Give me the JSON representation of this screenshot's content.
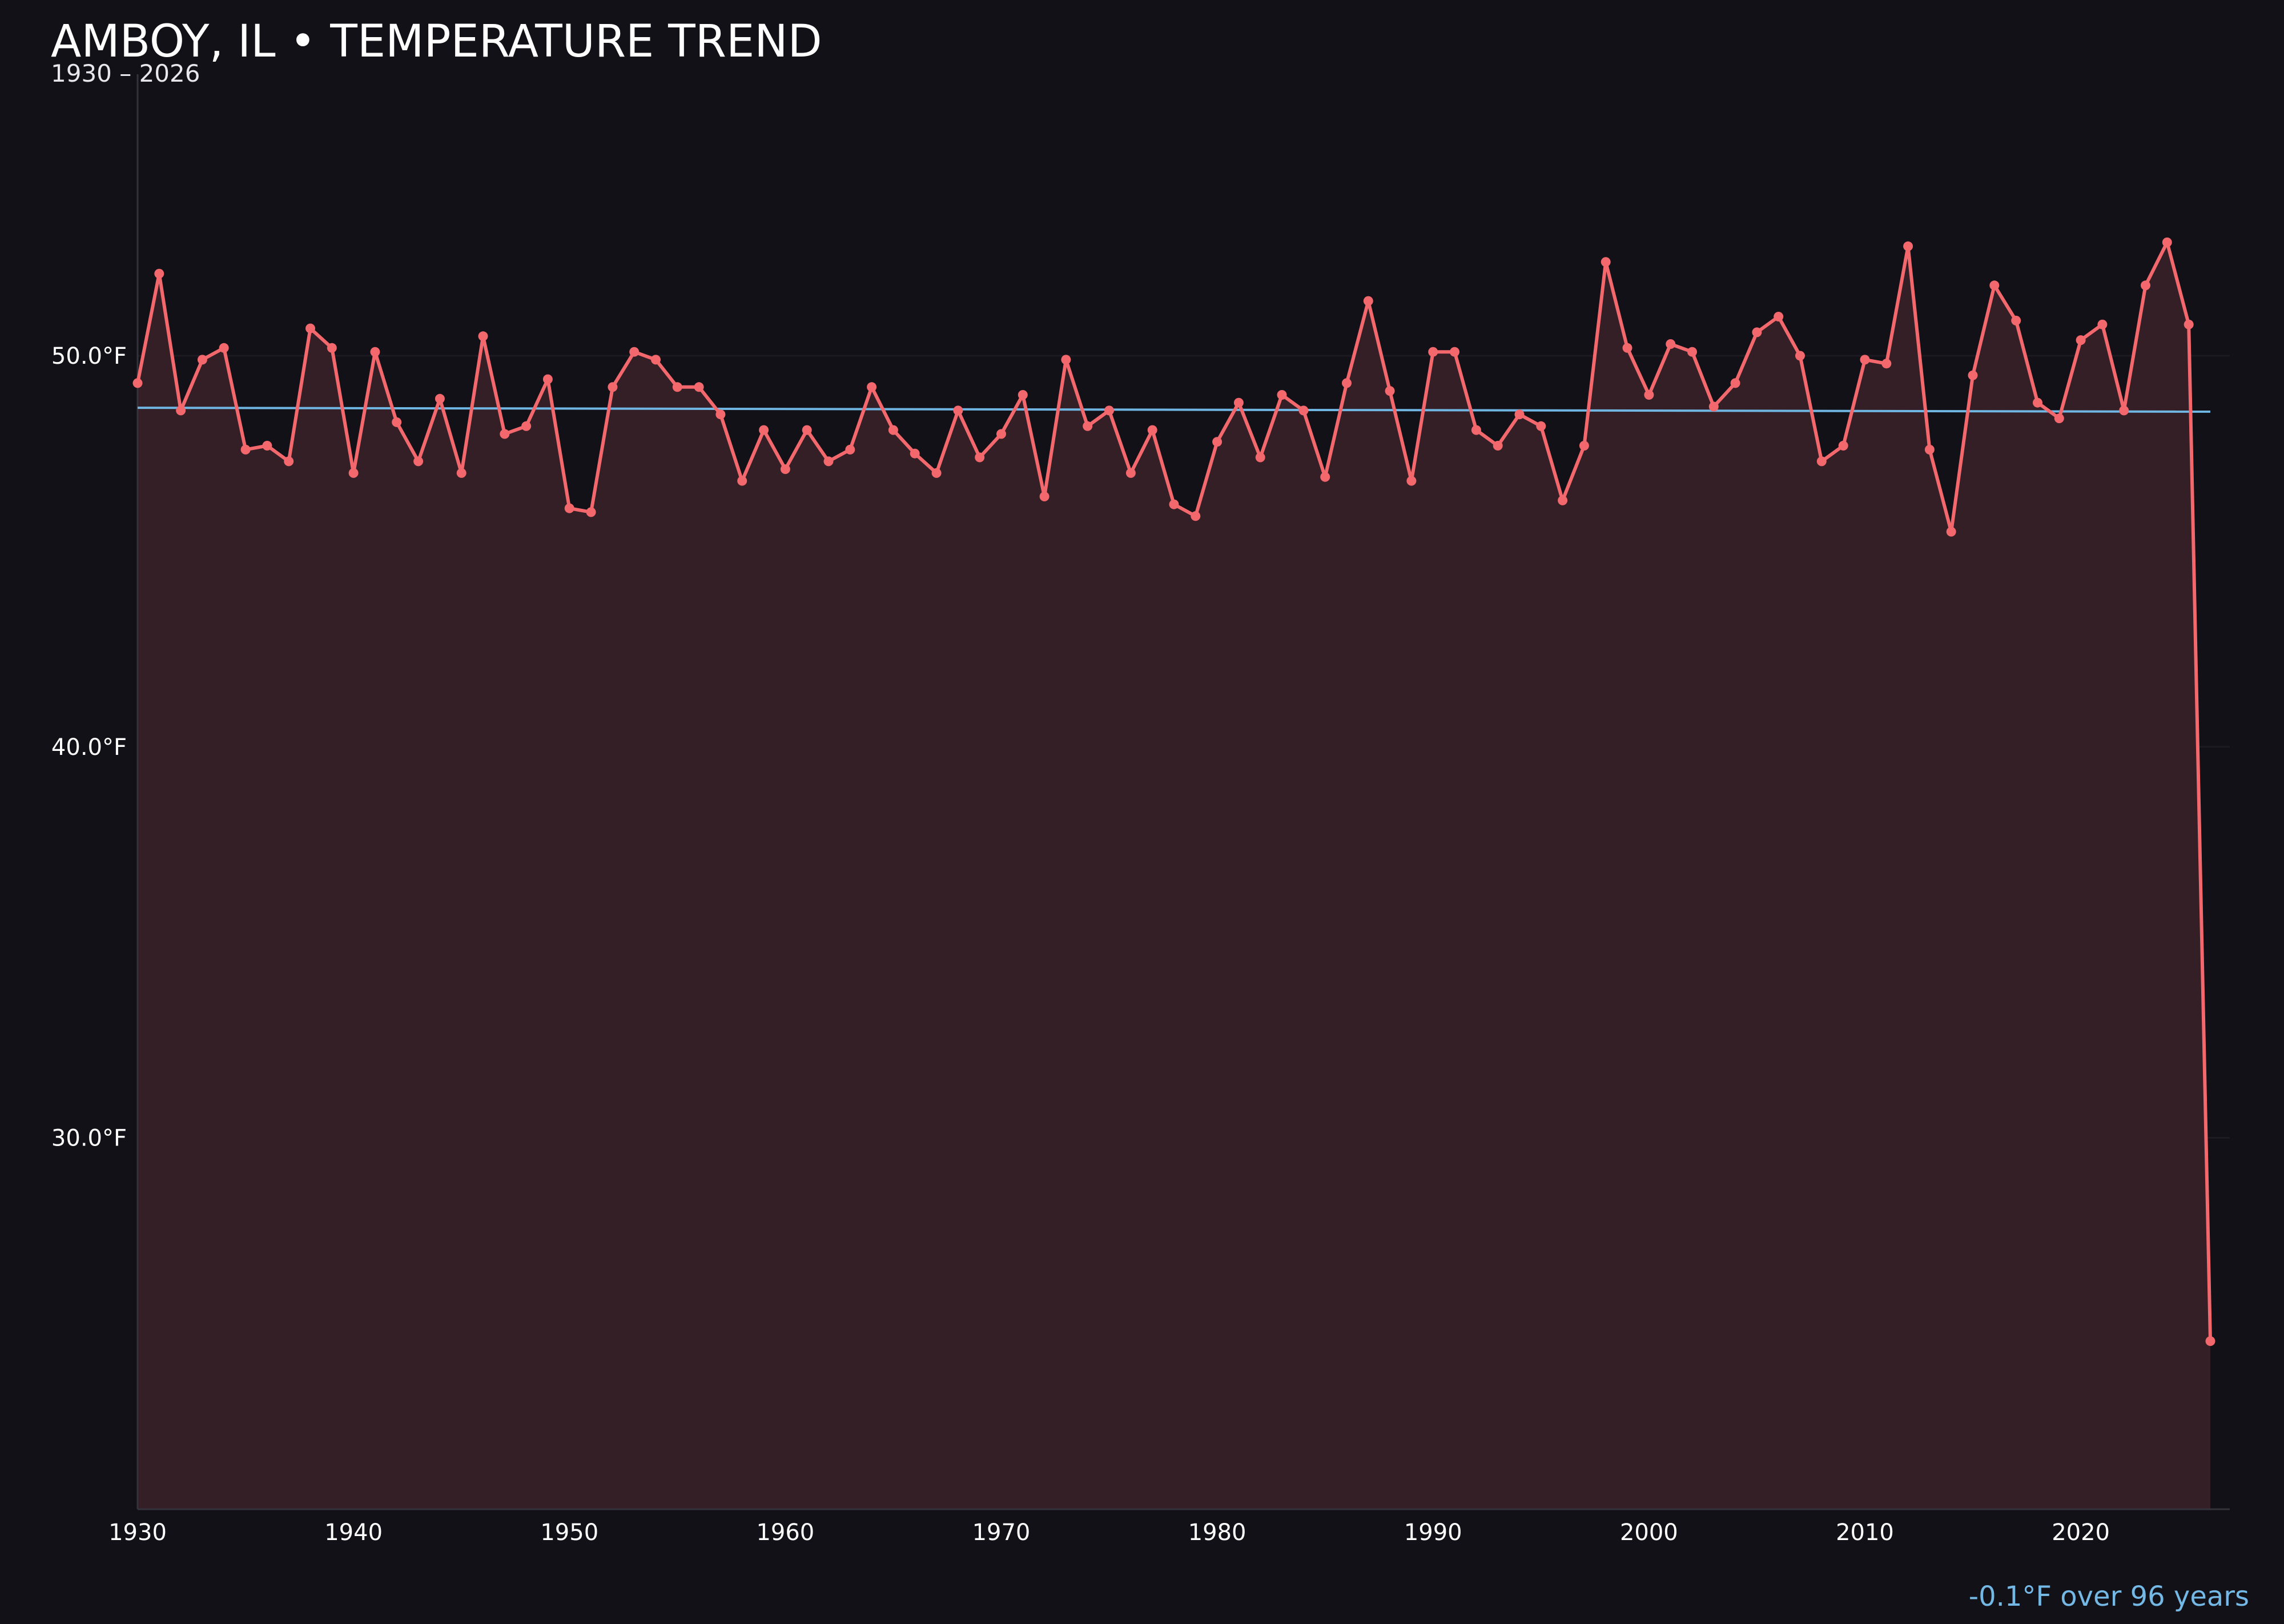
{
  "chart_data": {
    "type": "line",
    "title": "AMBOY, IL • TEMPERATURE TREND",
    "subtitle": "1930 – 2026",
    "xlabel": "",
    "ylabel": "",
    "xlim": [
      1930,
      2026.9
    ],
    "ylim": [
      20.5,
      57.2
    ],
    "x_ticks": [
      1930,
      1940,
      1950,
      1960,
      1970,
      1980,
      1990,
      2000,
      2010,
      2020
    ],
    "y_ticks": [
      30.0,
      40.0,
      50.0
    ],
    "y_tick_labels": [
      "30.0°F",
      "40.0°F",
      "50.0°F"
    ],
    "grid": "horizontal",
    "legend": "none",
    "colors": {
      "background": "#121117",
      "series": "#f2686d",
      "fill": "#351f26",
      "trend": "#6fb6e3",
      "axis": "#34333b",
      "grid": "#1d1b22",
      "note": "#74b9e6"
    },
    "series": [
      {
        "x": [
          1930,
          1931,
          1932,
          1933,
          1934,
          1935,
          1936,
          1937,
          1938,
          1939,
          1940,
          1941,
          1942,
          1943,
          1944,
          1945,
          1946,
          1947,
          1948,
          1949,
          1950,
          1951,
          1952,
          1953,
          1954,
          1955,
          1956,
          1957,
          1958,
          1959,
          1960,
          1961,
          1962,
          1963,
          1964,
          1965,
          1966,
          1967,
          1968,
          1969,
          1970,
          1971,
          1972,
          1973,
          1974,
          1975,
          1976,
          1977,
          1978,
          1979,
          1980,
          1981,
          1982,
          1983,
          1984,
          1985,
          1986,
          1987,
          1988,
          1989,
          1990,
          1991,
          1992,
          1993,
          1994,
          1995,
          1996,
          1997,
          1998,
          1999,
          2000,
          2001,
          2002,
          2003,
          2004,
          2005,
          2006,
          2007,
          2008,
          2009,
          2010,
          2011,
          2012,
          2013,
          2014,
          2015,
          2016,
          2017,
          2018,
          2019,
          2020,
          2021,
          2022,
          2023,
          2024,
          2025,
          2026
        ],
        "values": [
          49.3,
          52.1,
          48.6,
          49.9,
          50.2,
          47.6,
          47.7,
          47.3,
          50.7,
          50.2,
          47.0,
          50.1,
          48.3,
          47.3,
          48.9,
          47.0,
          50.5,
          48.0,
          48.2,
          49.4,
          46.1,
          46.0,
          49.2,
          50.1,
          49.9,
          49.2,
          49.2,
          48.5,
          46.8,
          48.1,
          47.1,
          48.1,
          47.3,
          47.6,
          49.2,
          48.1,
          47.5,
          47.0,
          48.6,
          47.4,
          48.0,
          49.0,
          46.4,
          49.9,
          48.2,
          48.6,
          47.0,
          48.1,
          46.2,
          45.9,
          47.8,
          48.8,
          47.4,
          49.0,
          48.6,
          46.9,
          49.3,
          51.4,
          49.1,
          46.8,
          50.1,
          50.1,
          48.1,
          47.7,
          48.5,
          48.2,
          46.3,
          47.7,
          52.4,
          50.2,
          49.0,
          50.3,
          50.1,
          48.7,
          49.3,
          50.6,
          51.0,
          50.0,
          47.3,
          47.7,
          49.9,
          49.8,
          52.8,
          47.6,
          45.5,
          49.5,
          51.8,
          50.9,
          48.8,
          48.4,
          50.4,
          50.8,
          48.6,
          51.8,
          52.9,
          50.8,
          24.8
        ]
      }
    ],
    "trend": {
      "x": [
        1930,
        2026
      ],
      "values": [
        48.67,
        48.57
      ]
    },
    "trend_note": "-0.1°F over 96 years"
  }
}
